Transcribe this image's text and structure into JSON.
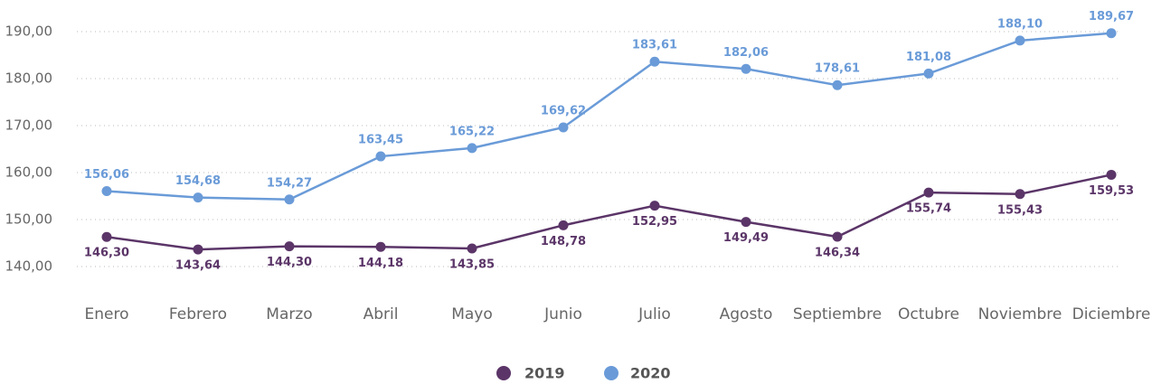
{
  "chart_data": {
    "type": "line",
    "categories": [
      "Enero",
      "Febrero",
      "Marzo",
      "Abril",
      "Mayo",
      "Junio",
      "Julio",
      "Agosto",
      "Septiembre",
      "Octubre",
      "Noviembre",
      "Diciembre"
    ],
    "series": [
      {
        "name": "2019",
        "color": "#5b3568",
        "values": [
          146.3,
          143.64,
          144.3,
          144.18,
          143.85,
          148.78,
          152.95,
          149.49,
          146.34,
          155.74,
          155.43,
          159.53
        ],
        "value_labels": [
          "146,30",
          "143,64",
          "144,30",
          "144,18",
          "143,85",
          "148,78",
          "152,95",
          "149,49",
          "146,34",
          "155,74",
          "155,43",
          "159,53"
        ]
      },
      {
        "name": "2020",
        "color": "#6a9bd8",
        "values": [
          156.06,
          154.68,
          154.27,
          163.45,
          165.22,
          169.62,
          183.61,
          182.06,
          178.61,
          181.08,
          188.1,
          189.67
        ],
        "value_labels": [
          "156,06",
          "154,68",
          "154,27",
          "163,45",
          "165,22",
          "169,62",
          "183,61",
          "182,06",
          "178,61",
          "181,08",
          "188,10",
          "189,67"
        ]
      }
    ],
    "ylim": [
      140,
      190
    ],
    "yticks": [
      {
        "value": 140,
        "label": "140,00"
      },
      {
        "value": 150,
        "label": "150,00"
      },
      {
        "value": 160,
        "label": "160,00"
      },
      {
        "value": 170,
        "label": "170,00"
      },
      {
        "value": 180,
        "label": "180,00"
      },
      {
        "value": 190,
        "label": "190,00"
      }
    ],
    "grid": true,
    "legend": "bottom"
  }
}
